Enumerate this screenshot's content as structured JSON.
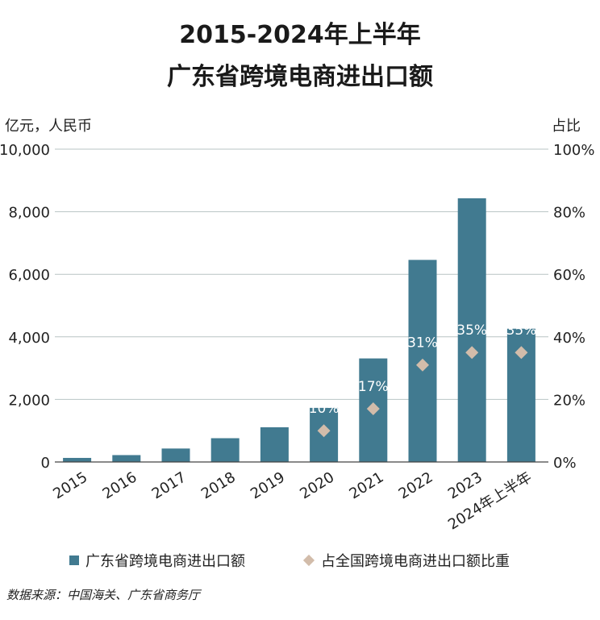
{
  "title_lines": [
    "2015-2024年上半年",
    "广东省跨境电商进出口额"
  ],
  "unit_left": "亿元，人民币",
  "unit_right": "占比",
  "source": "数据来源：中国海关、广东省商务厅",
  "colors": {
    "bar": "#417a90",
    "marker": "#d2bcaa",
    "grid": "#b9c4c4",
    "axis": "#444444"
  },
  "chart_data": {
    "type": "bar",
    "title": "2015-2024年上半年 广东省跨境电商进出口额",
    "categories": [
      "2015",
      "2016",
      "2017",
      "2018",
      "2019",
      "2020",
      "2021",
      "2022",
      "2023",
      "2024年上半年"
    ],
    "ylabel": "亿元，人民币",
    "y2label": "占比",
    "ylim": [
      0,
      10000
    ],
    "y2lim": [
      0,
      100
    ],
    "yticks": [
      "0",
      "2,000",
      "4,000",
      "6,000",
      "8,000",
      "10,000"
    ],
    "y2ticks": [
      "0%",
      "20%",
      "40%",
      "60%",
      "80%",
      "100%"
    ],
    "grid": true,
    "legend_position": "bottom",
    "series": [
      {
        "name": "广东省跨境电商进出口额",
        "kind": "bar",
        "axis": "left",
        "values": [
          130,
          220,
          430,
          760,
          1110,
          1730,
          3310,
          6460,
          8430,
          4260
        ]
      },
      {
        "name": "占全国跨境电商进出口额比重",
        "kind": "marker",
        "axis": "right",
        "values": [
          null,
          null,
          null,
          null,
          null,
          10,
          17,
          31,
          35,
          35
        ],
        "labels": [
          null,
          null,
          null,
          null,
          null,
          "10%",
          "17%",
          "31%",
          "35%",
          "35%"
        ]
      }
    ]
  }
}
